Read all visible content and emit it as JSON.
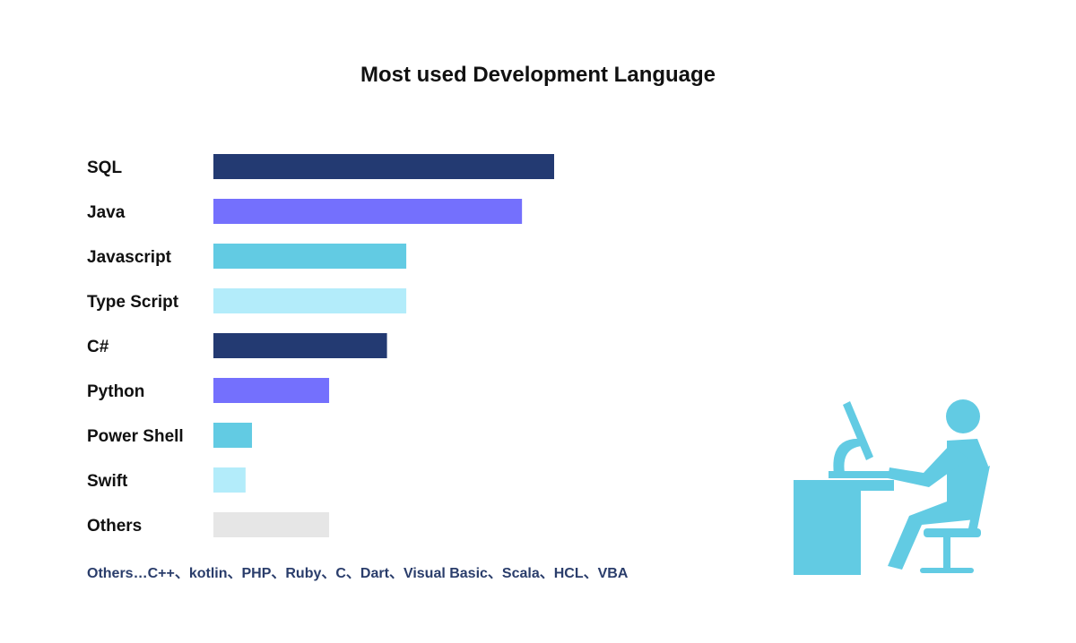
{
  "chart_data": {
    "type": "bar",
    "orientation": "horizontal",
    "title": "Most used Development Language",
    "categories": [
      "SQL",
      "Java",
      "Javascript",
      "Type Script",
      "C#",
      "Python",
      "Power Shell",
      "Swift",
      "Others"
    ],
    "values": [
      53,
      48,
      30,
      30,
      27,
      18,
      6,
      5,
      18
    ],
    "xlim": [
      0,
      53
    ],
    "colors": [
      "#233a72",
      "#7470fd",
      "#62cbe3",
      "#b3ecfa",
      "#233a72",
      "#7470fd",
      "#62cbe3",
      "#b3ecfa",
      "#e6e6e6"
    ],
    "xlabel": "",
    "ylabel": "",
    "grid": false
  },
  "footnote": "Others…C++、kotlin、PHP、Ruby、C、Dart、Visual Basic、Scala、HCL、VBA",
  "illustration": {
    "icon": "developer-at-computer-icon",
    "color": "#62cbe3"
  }
}
